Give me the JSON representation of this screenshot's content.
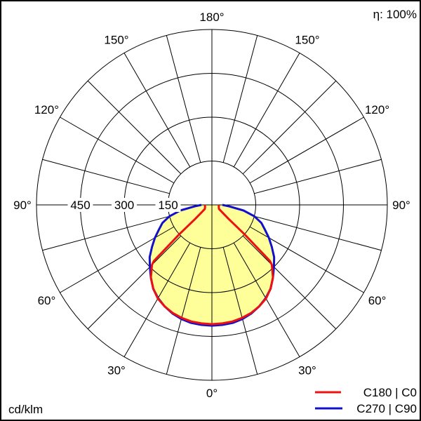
{
  "chart_data": {
    "type": "polar",
    "efficiency_label": "η: 100%",
    "unit_label": "cd/klm",
    "radial_ticks": [
      150,
      300,
      450,
      600
    ],
    "radial_tick_labels": [
      "150",
      "300",
      "450"
    ],
    "rlim": [
      0,
      600
    ],
    "angle_step_deg": 15,
    "angle_labels": [
      {
        "angle": 0,
        "text": "0°"
      },
      {
        "angle": 30,
        "text": "30°"
      },
      {
        "angle": 60,
        "text": "60°"
      },
      {
        "angle": 90,
        "text": "90°"
      },
      {
        "angle": 120,
        "text": "120°"
      },
      {
        "angle": 150,
        "text": "150°"
      },
      {
        "angle": 180,
        "text": "180°"
      }
    ],
    "fill_color": "#ffff99",
    "series": [
      {
        "name": "C180 | C0",
        "color": "#ee1111",
        "angles": [
          0,
          5,
          10,
          15,
          20,
          25,
          30,
          35,
          40,
          45,
          46,
          48,
          50,
          55,
          60,
          70,
          80,
          90
        ],
        "values": [
          408,
          407,
          405,
          400,
          393,
          383,
          370,
          350,
          325,
          290,
          276,
          150,
          75,
          40,
          28,
          25,
          24,
          24
        ]
      },
      {
        "name": "C270 | C90",
        "color": "#1111cc",
        "angles": [
          0,
          5,
          10,
          15,
          20,
          25,
          30,
          35,
          40,
          45,
          50,
          55,
          60,
          65,
          70,
          75,
          80,
          85,
          90
        ],
        "values": [
          413,
          412,
          410,
          404,
          395,
          383,
          368,
          350,
          325,
          300,
          278,
          250,
          225,
          200,
          180,
          150,
          110,
          60,
          36
        ]
      }
    ]
  }
}
